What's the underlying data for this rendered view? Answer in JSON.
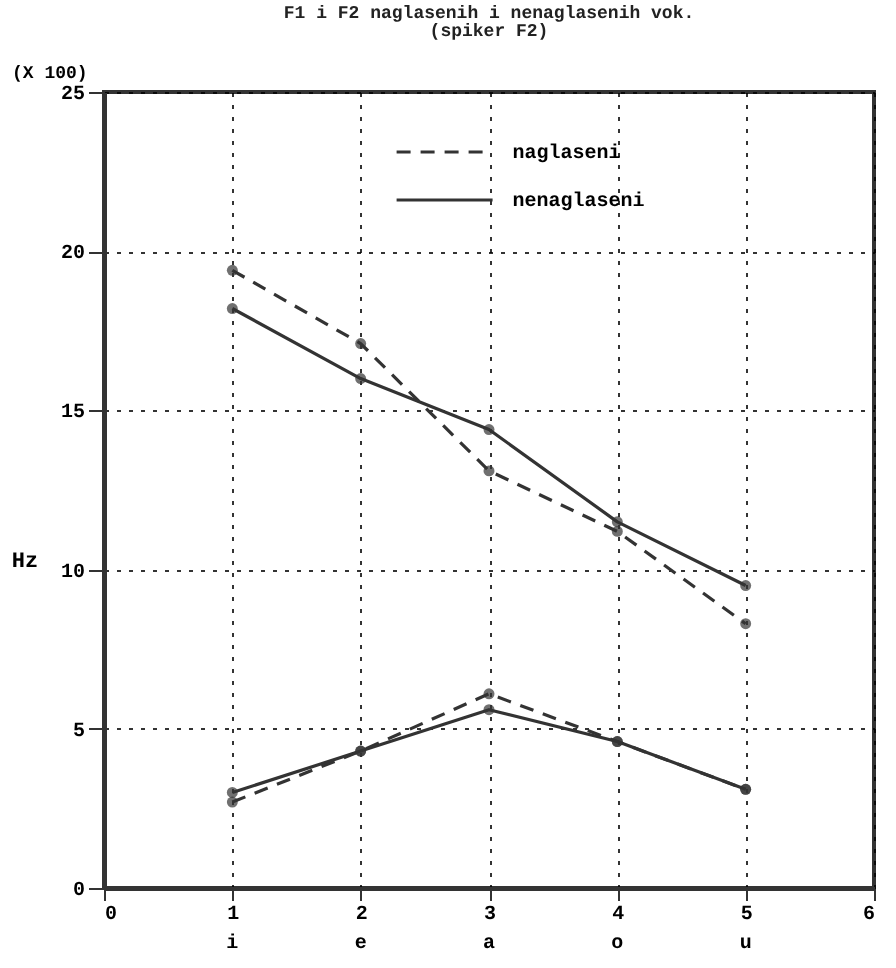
{
  "chart_data": {
    "type": "line",
    "title": "F1 i F2 naglasenih i nenaglasenih vok.",
    "subtitle": "(spiker F2)",
    "ylabel": "Hz",
    "x": [
      1,
      2,
      3,
      4,
      5
    ],
    "series": [
      {
        "name": "naglaseni",
        "color": "#333333",
        "line_style": "dashed",
        "values": [
          19.4,
          17.1,
          13.1,
          11.2,
          8.3
        ]
      },
      {
        "name": "nenaglaseni",
        "color": "#333333",
        "line_style": "solid",
        "values": [
          18.2,
          16.0,
          14.4,
          11.5,
          9.5
        ]
      },
      {
        "color": "#333333",
        "line_style": "dashed",
        "values": [
          2.7,
          4.3,
          6.1,
          4.6,
          3.1
        ]
      },
      {
        "color": "#333333",
        "line_style": "solid",
        "values": [
          3.0,
          4.3,
          5.6,
          4.6,
          3.1
        ]
      }
    ],
    "xlim": [
      0,
      6
    ],
    "xticks": [
      0,
      1,
      2,
      3,
      4,
      5,
      6
    ],
    "ylim": [
      0,
      25
    ],
    "yticks": [
      0,
      5,
      10,
      15,
      20,
      25
    ],
    "grid": true,
    "legend": "top",
    "marker": "circle",
    "annotations": [
      "(X 100)",
      "i",
      "e",
      "a",
      "o",
      "u"
    ]
  }
}
